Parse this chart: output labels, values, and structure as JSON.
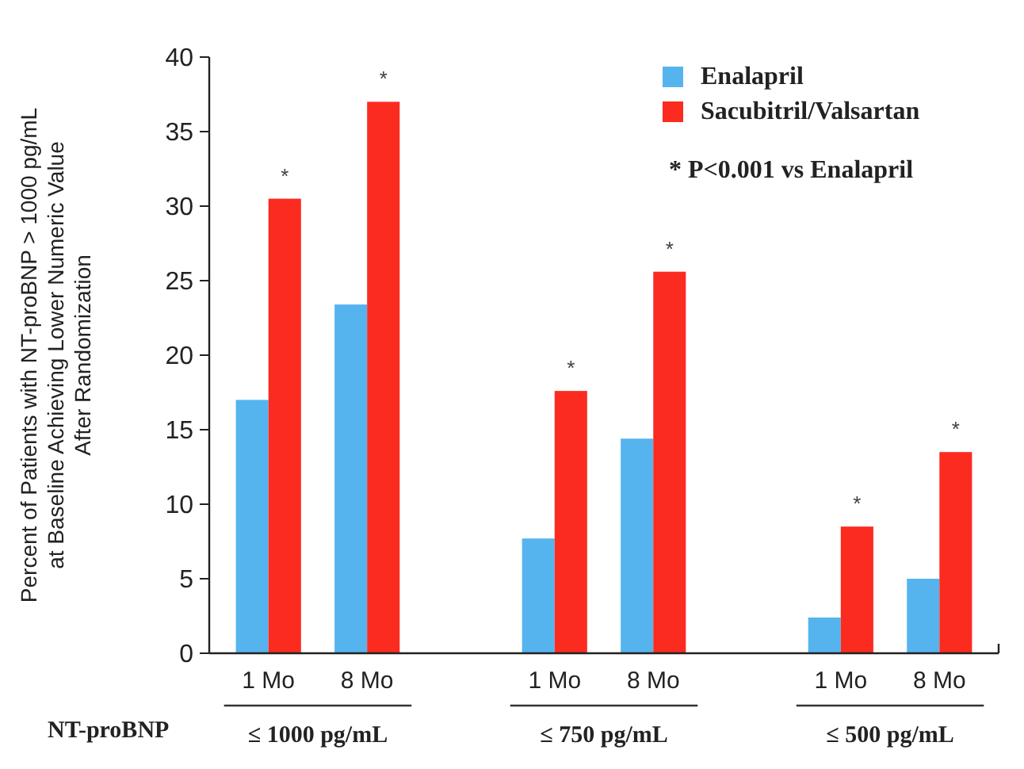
{
  "chart_data": {
    "type": "bar",
    "ylabel": "Percent of Patients with NT-proBNP > 1000 pg/mL\nat Baseline Achieving Lower Numeric Value\nAfter Randomization",
    "categories": [
      "1 Mo",
      "8 Mo",
      "1 Mo",
      "8 Mo",
      "1 Mo",
      "8 Mo"
    ],
    "series": [
      {
        "name": "Enalapril",
        "color": "#55b4ee",
        "values": [
          17,
          23.4,
          7.7,
          14.4,
          2.4,
          5
        ]
      },
      {
        "name": "Sacubitril/Valsartan",
        "color": "#fb2b20",
        "values": [
          30.5,
          37,
          17.6,
          25.6,
          8.5,
          13.5
        ],
        "value_labels": [
          "*",
          "*",
          "*",
          "*",
          "*",
          "*"
        ]
      }
    ],
    "ylim": [
      0,
      40
    ],
    "yticks": [
      0,
      5,
      10,
      15,
      20,
      25,
      30,
      35,
      40
    ],
    "grid": false,
    "legend": "top right",
    "annotations": [
      "* P<0.001 vs Enalapril",
      "NT-proBNP",
      "≤ 1000 pg/mL",
      "≤ 750 pg/mL",
      "≤ 500 pg/mL"
    ]
  }
}
